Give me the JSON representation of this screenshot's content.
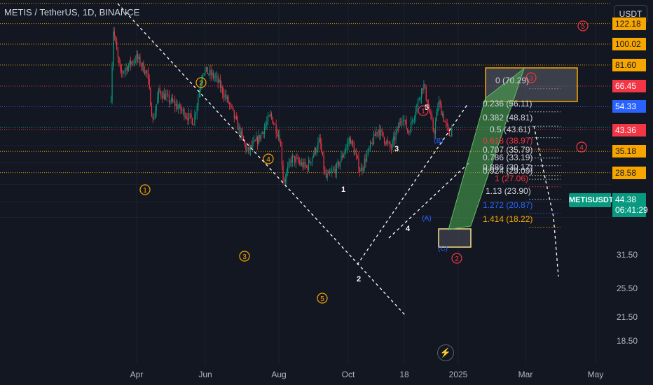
{
  "header": {
    "title": "METIS / TetherUS, 1D, BINANCE",
    "currency": "USDT"
  },
  "price_tags": [
    {
      "label": "122.18",
      "value": 122.18,
      "bg": "#f7a600",
      "fg": "#131722"
    },
    {
      "label": "100.02",
      "value": 100.02,
      "bg": "#f7a600",
      "fg": "#131722"
    },
    {
      "label": "81.60",
      "value": 81.6,
      "bg": "#f7a600",
      "fg": "#131722"
    },
    {
      "label": "66.45",
      "value": 66.45,
      "bg": "#f23645",
      "fg": "#ffffff"
    },
    {
      "label": "54.33",
      "value": 54.33,
      "bg": "#2962ff",
      "fg": "#ffffff"
    },
    {
      "label": "43.36",
      "value": 43.36,
      "bg": "#f23645",
      "fg": "#ffffff"
    },
    {
      "label": "35.18",
      "value": 35.18,
      "bg": "#f7a600",
      "fg": "#131722"
    },
    {
      "label": "28.58",
      "value": 28.58,
      "bg": "#f7a600",
      "fg": "#131722"
    }
  ],
  "current": {
    "symbol": "METISUSDT",
    "price": "44.38",
    "countdown": "06:41:29"
  },
  "y_ticks": [
    "31.50",
    "25.50",
    "21.50",
    "18.50"
  ],
  "x_ticks": [
    "Apr",
    "Jun",
    "Aug",
    "Oct",
    "18",
    "2025",
    "Mar",
    "May"
  ],
  "fib_levels": [
    {
      "label": "0 (70.29)",
      "value": 70.29,
      "color": "#d1d4dc"
    },
    {
      "label": "0.236 (56.11)",
      "value": 56.11,
      "color": "#d1d4dc"
    },
    {
      "label": "0.382 (48.81)",
      "value": 48.81,
      "color": "#d1d4dc"
    },
    {
      "label": "0.5 (43.61)",
      "value": 43.61,
      "color": "#d1d4dc"
    },
    {
      "label": "0.618 (38.97)",
      "value": 38.97,
      "color": "#f23645"
    },
    {
      "label": "0.707 (35.79)",
      "value": 35.79,
      "color": "#d1d4dc"
    },
    {
      "label": "0.786 (33.19)",
      "value": 33.19,
      "color": "#d1d4dc"
    },
    {
      "label": "0.886 (30.17)",
      "value": 30.17,
      "color": "#d1d4dc"
    },
    {
      "label": "0.924 (29.09)",
      "value": 29.09,
      "color": "#d1d4dc"
    },
    {
      "label": "1 (27.06)",
      "value": 27.06,
      "color": "#f23645"
    },
    {
      "label": "1.13 (23.90)",
      "value": 23.9,
      "color": "#d1d4dc"
    },
    {
      "label": "1.272 (20.87)",
      "value": 20.87,
      "color": "#2962ff"
    },
    {
      "label": "1.414 (18.22)",
      "value": 18.22,
      "color": "#f7a600"
    }
  ],
  "wave_labels": [
    {
      "text": "1",
      "style": "orange-circle"
    },
    {
      "text": "2",
      "style": "orange-circle"
    },
    {
      "text": "3",
      "style": "orange-circle"
    },
    {
      "text": "4",
      "style": "orange-circle"
    },
    {
      "text": "5",
      "style": "orange-circle"
    },
    {
      "text": "1",
      "style": "white"
    },
    {
      "text": "2",
      "style": "white"
    },
    {
      "text": "3",
      "style": "white"
    },
    {
      "text": "4",
      "style": "white"
    },
    {
      "text": "5",
      "style": "white"
    },
    {
      "text": "1",
      "style": "red-circle"
    },
    {
      "text": "2",
      "style": "red-circle"
    },
    {
      "text": "3",
      "style": "red-circle"
    },
    {
      "text": "4",
      "style": "red-circle"
    },
    {
      "text": "5",
      "style": "red-circle"
    },
    {
      "text": "(A)",
      "style": "blue"
    },
    {
      "text": "(B)",
      "style": "blue"
    },
    {
      "text": "(C)",
      "style": "blue"
    }
  ],
  "chart_data": {
    "type": "candlestick",
    "symbol": "METIS / TetherUS",
    "interval": "1D",
    "y_scale": "log",
    "y_range": [
      15.5,
      150
    ],
    "x_ticks": [
      "Apr",
      "Jun",
      "Aug",
      "Oct",
      "18",
      "2025",
      "Mar",
      "May"
    ],
    "anchors": [
      {
        "date": "2024-03-10",
        "price": 60
      },
      {
        "date": "2024-03-12",
        "price": 115
      },
      {
        "date": "2024-03-18",
        "price": 75
      },
      {
        "date": "2024-04-01",
        "price": 88
      },
      {
        "date": "2024-04-10",
        "price": 75
      },
      {
        "date": "2024-04-15",
        "price": 47
      },
      {
        "date": "2024-04-20",
        "price": 63
      },
      {
        "date": "2024-05-05",
        "price": 55
      },
      {
        "date": "2024-05-20",
        "price": 47
      },
      {
        "date": "2024-05-28",
        "price": 78
      },
      {
        "date": "2024-06-08",
        "price": 72
      },
      {
        "date": "2024-06-20",
        "price": 55
      },
      {
        "date": "2024-07-05",
        "price": 35
      },
      {
        "date": "2024-07-15",
        "price": 40
      },
      {
        "date": "2024-07-25",
        "price": 50
      },
      {
        "date": "2024-08-02",
        "price": 40
      },
      {
        "date": "2024-08-05",
        "price": 26
      },
      {
        "date": "2024-08-12",
        "price": 33
      },
      {
        "date": "2024-08-25",
        "price": 30
      },
      {
        "date": "2024-09-05",
        "price": 39
      },
      {
        "date": "2024-09-10",
        "price": 27
      },
      {
        "date": "2024-09-20",
        "price": 30
      },
      {
        "date": "2024-10-01",
        "price": 40
      },
      {
        "date": "2024-10-10",
        "price": 29
      },
      {
        "date": "2024-10-25",
        "price": 44
      },
      {
        "date": "2024-11-05",
        "price": 36
      },
      {
        "date": "2024-11-15",
        "price": 50
      },
      {
        "date": "2024-11-20",
        "price": 42
      },
      {
        "date": "2024-12-03",
        "price": 68
      },
      {
        "date": "2024-12-12",
        "price": 42
      },
      {
        "date": "2024-12-16",
        "price": 57
      },
      {
        "date": "2024-12-25",
        "price": 41
      },
      {
        "date": "2024-12-28",
        "price": 44.38
      }
    ]
  }
}
